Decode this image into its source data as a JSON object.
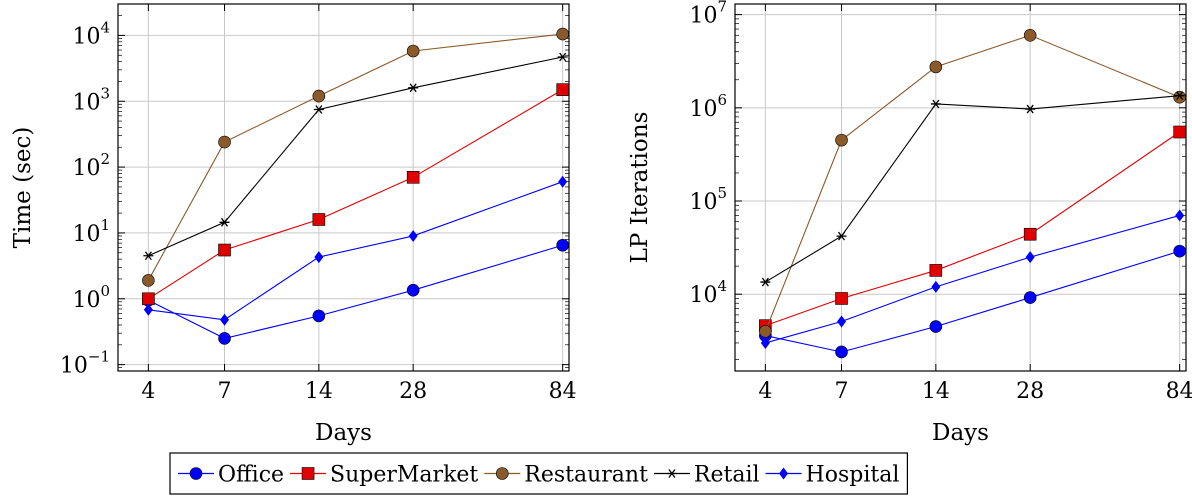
{
  "chart_data": [
    {
      "type": "line",
      "xscale": "log",
      "yscale": "log",
      "x": [
        4,
        7,
        14,
        28,
        84
      ],
      "xticks": [
        "4",
        "7",
        "14",
        "28",
        "84"
      ],
      "xlabel": "Days",
      "ylabel": "Time (sec)",
      "ylim": [
        0.08,
        30000
      ],
      "yticks": [
        {
          "value": 0.1,
          "base": "10",
          "exp": "−1"
        },
        {
          "value": 1,
          "base": "10",
          "exp": "0"
        },
        {
          "value": 10,
          "base": "10",
          "exp": "1"
        },
        {
          "value": 100,
          "base": "10",
          "exp": "2"
        },
        {
          "value": 1000,
          "base": "10",
          "exp": "3"
        },
        {
          "value": 10000,
          "base": "10",
          "exp": "4"
        }
      ],
      "grid": true,
      "series": [
        {
          "name": "Office",
          "color": "#0000ff",
          "marker": "circle",
          "values": [
            0.95,
            0.25,
            0.55,
            1.35,
            6.5
          ]
        },
        {
          "name": "SuperMarket",
          "color": "#e00000",
          "marker": "square",
          "values": [
            1.0,
            5.5,
            16,
            70,
            1500
          ]
        },
        {
          "name": "Restaurant",
          "color": "#8b5a2b",
          "marker": "circle",
          "values": [
            1.9,
            240,
            1200,
            5800,
            10500
          ]
        },
        {
          "name": "Retail",
          "color": "#000000",
          "marker": "star",
          "values": [
            4.5,
            14.5,
            750,
            1600,
            4700
          ]
        },
        {
          "name": "Hospital",
          "color": "#0000ff",
          "marker": "diamond",
          "values": [
            0.68,
            0.48,
            4.3,
            9,
            60
          ]
        }
      ]
    },
    {
      "type": "line",
      "xscale": "log",
      "yscale": "log",
      "x": [
        4,
        7,
        14,
        28,
        84
      ],
      "xticks": [
        "4",
        "7",
        "14",
        "28",
        "84"
      ],
      "xlabel": "Days",
      "ylabel": "LP Iterations",
      "ylim": [
        1500,
        13000000
      ],
      "yticks": [
        {
          "value": 10000,
          "base": "10",
          "exp": "4"
        },
        {
          "value": 100000,
          "base": "10",
          "exp": "5"
        },
        {
          "value": 1000000,
          "base": "10",
          "exp": "6"
        },
        {
          "value": 10000000,
          "base": "10",
          "exp": "7"
        }
      ],
      "grid": true,
      "series": [
        {
          "name": "Office",
          "color": "#0000ff",
          "marker": "circle",
          "values": [
            3600,
            2400,
            4500,
            9200,
            29000
          ]
        },
        {
          "name": "SuperMarket",
          "color": "#e00000",
          "marker": "square",
          "values": [
            4600,
            9000,
            18000,
            44000,
            550000
          ]
        },
        {
          "name": "Restaurant",
          "color": "#8b5a2b",
          "marker": "circle",
          "values": [
            4000,
            450000,
            2750000,
            6000000,
            1300000
          ]
        },
        {
          "name": "Retail",
          "color": "#000000",
          "marker": "star",
          "values": [
            13500,
            42000,
            1100000,
            970000,
            1350000
          ]
        },
        {
          "name": "Hospital",
          "color": "#0000ff",
          "marker": "diamond",
          "values": [
            3000,
            5100,
            12000,
            25000,
            70000
          ]
        }
      ]
    }
  ],
  "legend": {
    "placement": "bottom-center",
    "entries": [
      "Office",
      "SuperMarket",
      "Restaurant",
      "Retail",
      "Hospital"
    ]
  }
}
